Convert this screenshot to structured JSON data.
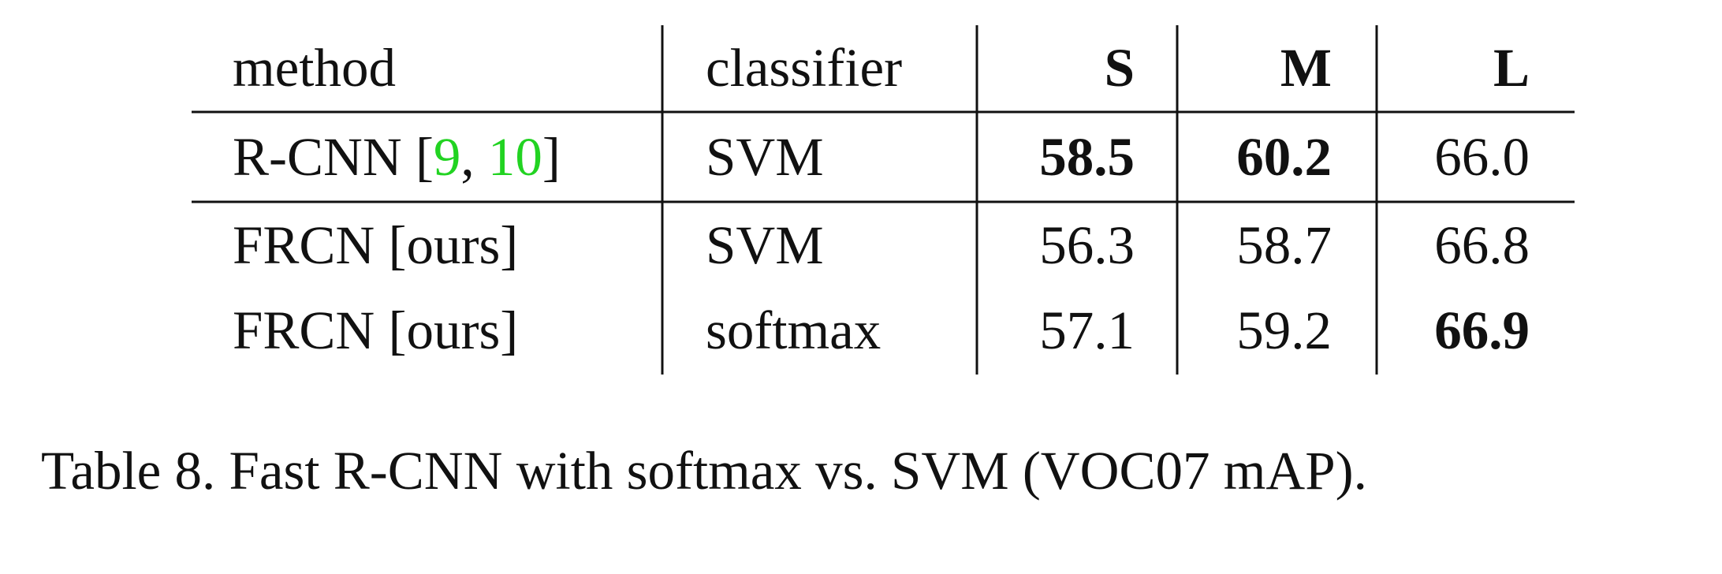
{
  "table": {
    "headers": {
      "method": "method",
      "classifier": "classifier",
      "s": "S",
      "m": "M",
      "l": "L"
    },
    "rows": [
      {
        "method": "R-CNN",
        "citations": [
          "9",
          "10"
        ],
        "classifier": "SVM",
        "s": "58.5",
        "m": "60.2",
        "l": "66.0",
        "bold": [
          "s",
          "m"
        ]
      },
      {
        "method": "FRCN [ours]",
        "classifier": "SVM",
        "s": "56.3",
        "m": "58.7",
        "l": "66.8",
        "bold": []
      },
      {
        "method": "FRCN [ours]",
        "classifier": "softmax",
        "s": "57.1",
        "m": "59.2",
        "l": "66.9",
        "bold": [
          "l"
        ]
      }
    ]
  },
  "caption": "Table 8. Fast R-CNN with softmax vs. SVM (VOC07 mAP).",
  "colors": {
    "citation": "#22d322",
    "text": "#111111",
    "rule": "#111111"
  }
}
